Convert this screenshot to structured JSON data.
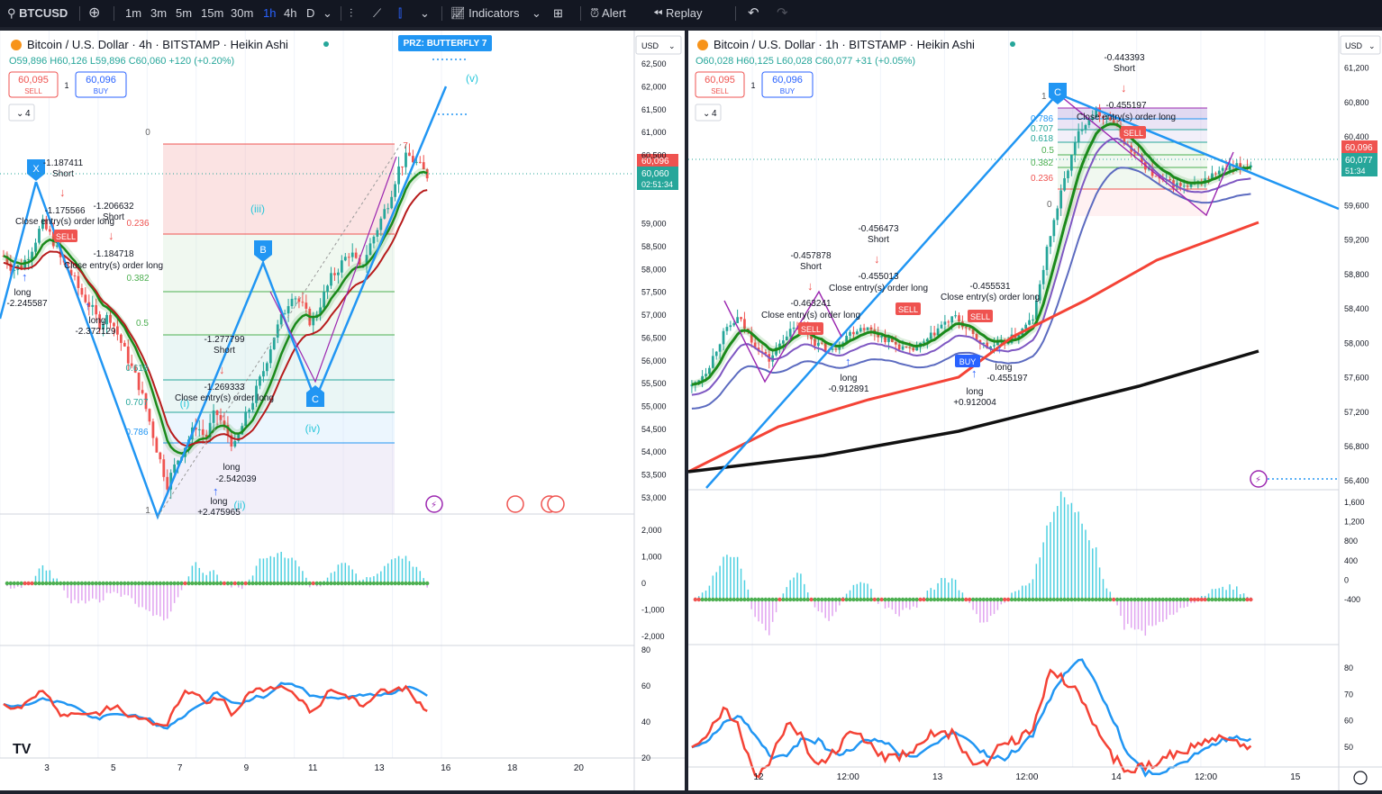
{
  "topbar": {
    "symbol": "BTCUSD",
    "timeframes": [
      "1m",
      "3m",
      "5m",
      "15m",
      "30m",
      "1h",
      "4h",
      "D"
    ],
    "active_timeframe": "1h",
    "indicators": "Indicators",
    "alert": "Alert",
    "replay": "Replay"
  },
  "left": {
    "title": "Bitcoin / U.S. Dollar · 4h · BITSTAMP · Heikin Ashi",
    "ohlc": "O59,896 H60,126 L59,896 C60,060 +120 (+0.20%)",
    "sell_price": "60,095",
    "sell_label": "SELL",
    "buy_price": "60,096",
    "buy_label": "BUY",
    "spread": "1",
    "currency": "USD",
    "collapse_count": "4",
    "last_price": "60,096",
    "close_price": "60,060",
    "countdown": "02:51:34",
    "prz_label": "PRZ: BUTTERFLY 7",
    "wave_labels": [
      "(v)",
      "(iii)",
      "(iv)",
      "(ii)",
      "(i)"
    ],
    "pattern_points": [
      "X",
      "B",
      "C"
    ],
    "fib_levels": [
      "0.236",
      "0.382",
      "0.5",
      "0.618",
      "0.707",
      "0.786"
    ],
    "fib_top": "0",
    "fib_bottom": "1",
    "fib_seven": "7",
    "annotations": [
      "-1.187411",
      "Short",
      "-1.175566",
      "Close entry(s) order long",
      "-1.206632",
      "Short",
      "-1.184718",
      "Close entry(s) order long",
      "long",
      "-2.245587",
      "long",
      "-2.372129",
      "-1.277799",
      "Short",
      "-1.269333",
      "Close entry(s) order long",
      "long",
      "-2.542039",
      "long",
      "+2.475965"
    ],
    "price_axis": [
      "62,500",
      "62,000",
      "61,500",
      "61,000",
      "60,500",
      "59,000",
      "58,500",
      "58,000",
      "57,500",
      "57,000",
      "56,500",
      "56,000",
      "55,500",
      "55,000",
      "54,500",
      "54,000",
      "53,500",
      "53,000"
    ],
    "osc_axis": [
      "2,000",
      "1,000",
      "0",
      "-1,000",
      "-2,000"
    ],
    "rsi_axis": [
      "80",
      "60",
      "40",
      "20"
    ],
    "time_axis": [
      "3",
      "5",
      "7",
      "9",
      "11",
      "13",
      "16",
      "18",
      "20"
    ],
    "sell_tag": "SELL",
    "logo": "TV"
  },
  "right": {
    "title": "Bitcoin / U.S. Dollar · 1h · BITSTAMP · Heikin Ashi",
    "ohlc": "O60,028 H60,125 L60,028 C60,077 +31 (+0.05%)",
    "sell_price": "60,095",
    "sell_label": "SELL",
    "buy_price": "60,096",
    "buy_label": "BUY",
    "spread": "1",
    "currency": "USD",
    "collapse_count": "4",
    "last_price": "60,096",
    "close_price": "60,077",
    "countdown": "51:34",
    "pattern_points": [
      "C"
    ],
    "fib_levels": [
      "0.786",
      "0.707",
      "0.618",
      "0.5",
      "0.382",
      "0.236"
    ],
    "fib_top": "1",
    "fib_bottom": "0",
    "annotations": [
      "-0.443393",
      "Short",
      "-0.455197",
      "Close entry(s) order long",
      "-0.456473",
      "Short",
      "-0.455013",
      "Close entry(s) order long",
      "-0.457878",
      "Short",
      "-0.463241",
      "Close entry(s) order long",
      "long",
      "-0.912891",
      "-0.455531",
      "Close entry(s) order long",
      "long",
      "-0.455197",
      "long",
      "+0.912004"
    ],
    "tags": [
      "SELL",
      "SELL",
      "SELL",
      "SELL",
      "BUY"
    ],
    "price_axis": [
      "61,200",
      "60,800",
      "60,400",
      "59,600",
      "59,200",
      "58,800",
      "58,400",
      "58,000",
      "57,600",
      "57,200",
      "56,800",
      "56,400"
    ],
    "osc_axis": [
      "1,600",
      "1,200",
      "800",
      "400",
      "0",
      "-400"
    ],
    "rsi_axis": [
      "80",
      "70",
      "60",
      "50"
    ],
    "time_axis": [
      "12",
      "12:00",
      "13",
      "12:00",
      "14",
      "12:00",
      "15"
    ]
  },
  "colors": {
    "up": "#26a69a",
    "down": "#ef5350",
    "accent": "#2962ff",
    "pattern": "#2196f3",
    "ema_green": "#1b8a1b",
    "ema_red": "#f44336",
    "purple": "#9c27b0",
    "rsi_blue": "#2196f3",
    "rsi_red": "#f44336"
  },
  "chart_data": [
    {
      "type": "candlestick",
      "title": "Bitcoin / U.S. Dollar · 4h · BITSTAMP · Heikin Ashi",
      "xlabel": "",
      "ylabel": "",
      "ylim": [
        52900,
        62600
      ],
      "x_ticks": [
        "3",
        "5",
        "7",
        "9",
        "11",
        "13",
        "16",
        "18",
        "20"
      ],
      "close_path": [
        58300,
        58000,
        58100,
        58500,
        59000,
        58700,
        58200,
        57900,
        57500,
        57200,
        56800,
        57000,
        56500,
        56000,
        55500,
        54800,
        54000,
        53300,
        53800,
        54200,
        54600,
        54300,
        54900,
        54500,
        54100,
        54700,
        55200,
        55800,
        56500,
        57000,
        57500,
        57200,
        56800,
        57300,
        57800,
        58100,
        58400,
        58000,
        58500,
        59000,
        59500,
        60200,
        60500,
        60300,
        60060
      ]
    },
    {
      "type": "candlestick",
      "title": "Bitcoin / U.S. Dollar · 1h · BITSTAMP · Heikin Ashi",
      "xlabel": "",
      "ylabel": "",
      "ylim": [
        56350,
        61300
      ],
      "x_ticks": [
        "12",
        "12:00",
        "13",
        "12:00",
        "14",
        "12:00",
        "15"
      ],
      "close_path": [
        57500,
        57700,
        58100,
        58300,
        58000,
        57800,
        58100,
        58200,
        58000,
        57900,
        58100,
        58200,
        58100,
        58000,
        57900,
        58000,
        58200,
        58300,
        58100,
        57950,
        58000,
        58100,
        58300,
        59200,
        59900,
        60500,
        60700,
        60600,
        60300,
        60100,
        59900,
        59850,
        59800,
        59900,
        60000,
        60050,
        60077
      ]
    }
  ]
}
